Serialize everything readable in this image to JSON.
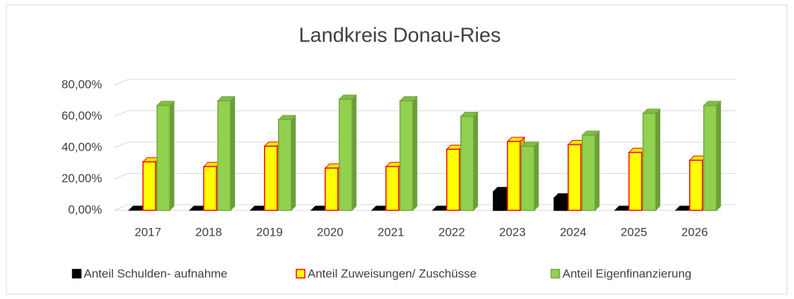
{
  "chart_data": {
    "type": "bar3d",
    "title": "Landkreis Donau-Ries",
    "categories": [
      "2017",
      "2018",
      "2019",
      "2020",
      "2021",
      "2022",
      "2023",
      "2024",
      "2025",
      "2026"
    ],
    "series": [
      {
        "name": "Anteil Schulden- aufnahme",
        "color": "#000000",
        "edge": "#000000",
        "values": [
          0,
          0,
          0,
          0,
          0,
          0,
          12,
          8,
          0,
          0
        ]
      },
      {
        "name": "Anteil Zuweisungen/ Zuschüsse",
        "color": "#ffff00",
        "edge": "#ff0000",
        "values": [
          31,
          28,
          41,
          27,
          28,
          39,
          44,
          42,
          37,
          32
        ]
      },
      {
        "name": "Anteil Eigenfinanzierung",
        "color": "#92d050",
        "edge": "#70a83c",
        "values": [
          67,
          70,
          58,
          71,
          70,
          60,
          41,
          48,
          62,
          67
        ]
      }
    ],
    "ylim": [
      0,
      80
    ],
    "yticks": [
      {
        "value": 0,
        "label": "0,00%"
      },
      {
        "value": 20,
        "label": "20,00%"
      },
      {
        "value": 40,
        "label": "40,00%"
      },
      {
        "value": 60,
        "label": "60,00%"
      },
      {
        "value": 80,
        "label": "80,00%"
      }
    ],
    "grid": true,
    "legend": "bottom"
  }
}
